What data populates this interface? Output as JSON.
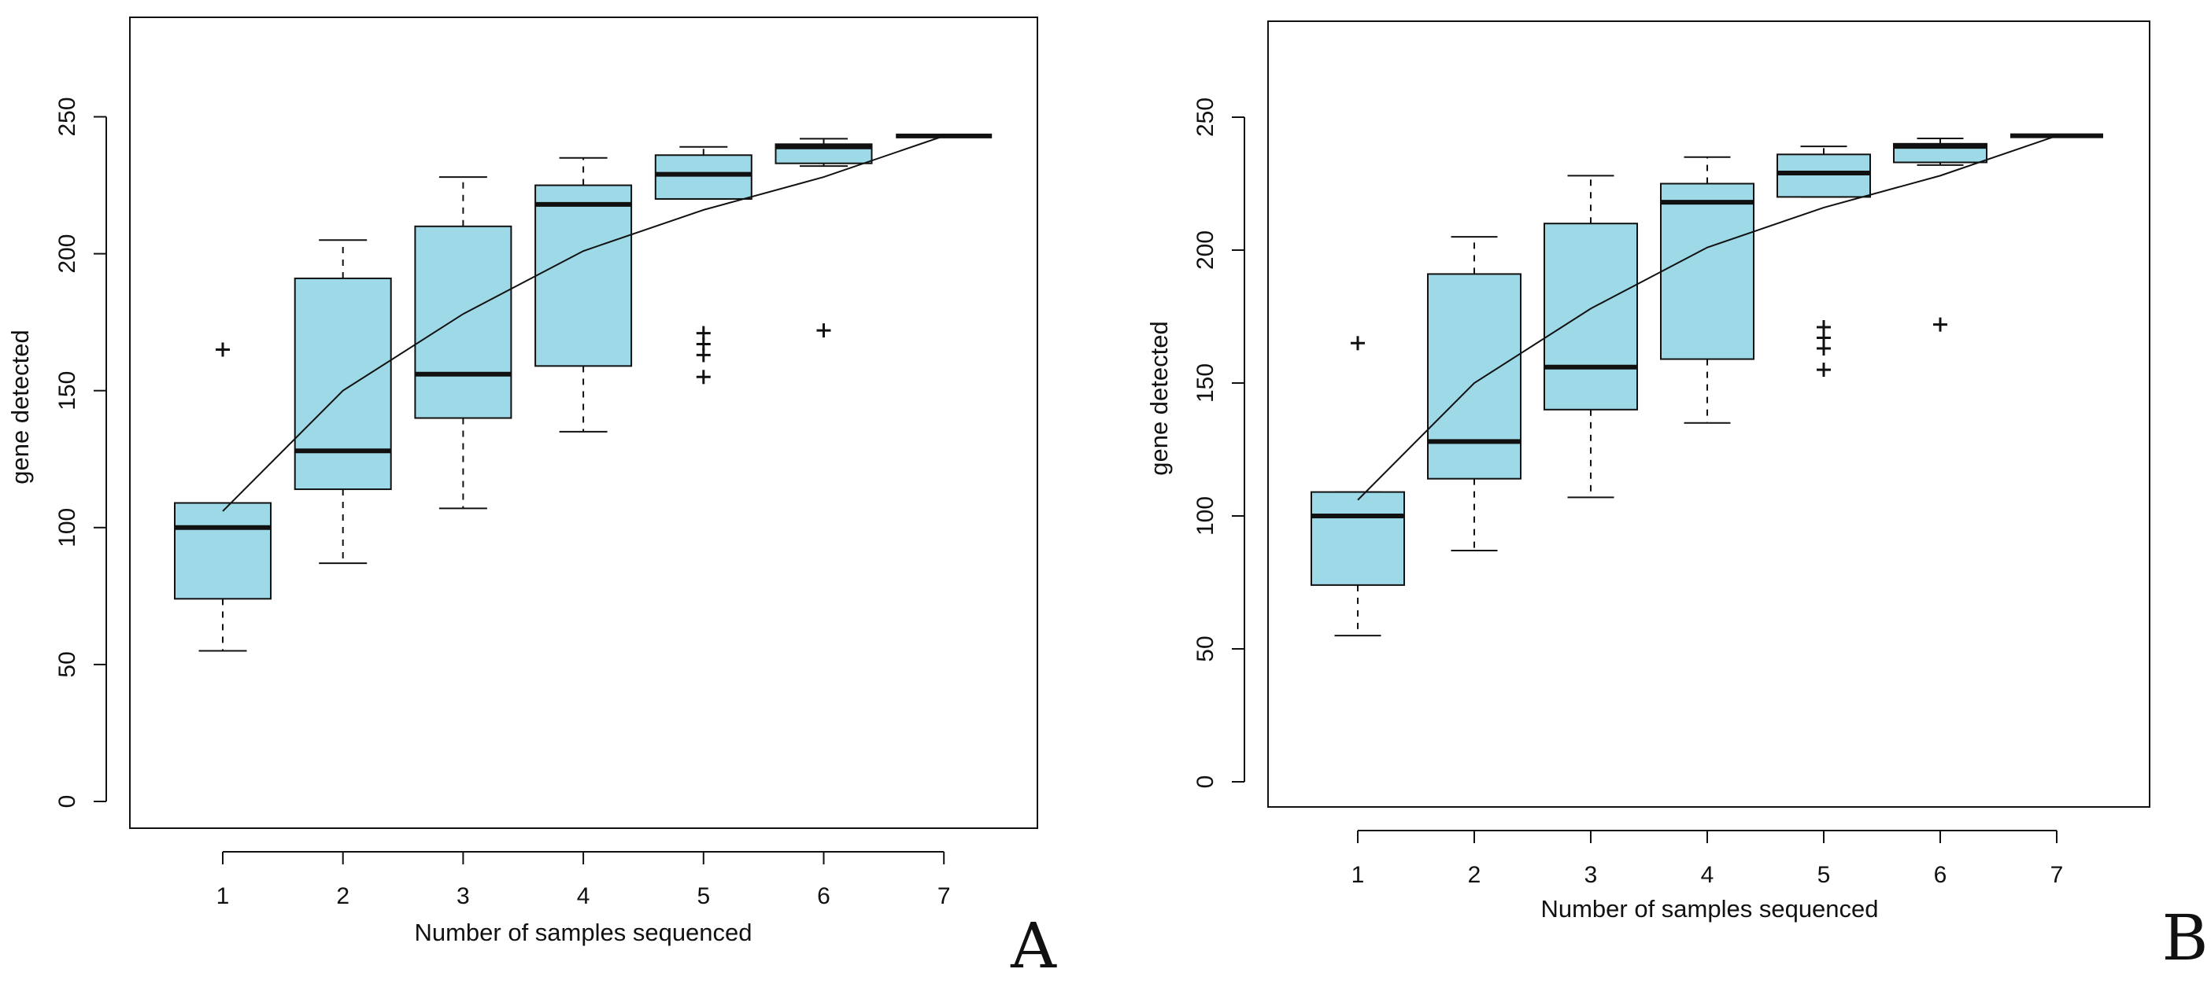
{
  "chart_data": [
    {
      "type": "box",
      "panel_label": "A",
      "xlabel": "Number of samples sequenced",
      "ylabel": "gene detected",
      "ylim": [
        -10,
        285
      ],
      "yticks": [
        0,
        50,
        100,
        150,
        200,
        250
      ],
      "categories": [
        "1",
        "2",
        "3",
        "4",
        "5",
        "6",
        "7"
      ],
      "box_color": "#9dd9e6",
      "boxes": [
        {
          "x": 1,
          "whisker_low": 55,
          "q1": 74,
          "median": 100,
          "q3": 109,
          "whisker_high": 109,
          "outliers": [
            165
          ]
        },
        {
          "x": 2,
          "whisker_low": 87,
          "q1": 114,
          "median": 128,
          "q3": 191,
          "whisker_high": 205,
          "outliers": []
        },
        {
          "x": 3,
          "whisker_low": 107,
          "q1": 140,
          "median": 156,
          "q3": 210,
          "whisker_high": 228,
          "outliers": []
        },
        {
          "x": 4,
          "whisker_low": 135,
          "q1": 159,
          "median": 218,
          "q3": 225,
          "whisker_high": 235,
          "outliers": []
        },
        {
          "x": 5,
          "whisker_low": 220,
          "q1": 220,
          "median": 229,
          "q3": 236,
          "whisker_high": 239,
          "outliers": [
            155,
            163,
            167,
            171
          ]
        },
        {
          "x": 6,
          "whisker_low": 232,
          "q1": 233,
          "median": 239,
          "q3": 240,
          "whisker_high": 242,
          "outliers": [
            172
          ]
        },
        {
          "x": 7,
          "whisker_low": 243,
          "q1": 243,
          "median": 243,
          "q3": 243,
          "whisker_high": 243,
          "outliers": []
        }
      ],
      "mean_line": {
        "x": [
          1,
          2,
          3,
          4,
          5,
          6,
          7
        ],
        "y": [
          106,
          150,
          178,
          201,
          216,
          228,
          243
        ]
      }
    },
    {
      "type": "box",
      "panel_label": "B",
      "xlabel": "Number of samples sequenced",
      "ylabel": "gene detected",
      "ylim": [
        -10,
        285
      ],
      "yticks": [
        0,
        50,
        100,
        150,
        200,
        250
      ],
      "categories": [
        "1",
        "2",
        "3",
        "4",
        "5",
        "6",
        "7"
      ],
      "box_color": "#9dd9e6",
      "boxes": [
        {
          "x": 1,
          "whisker_low": 55,
          "q1": 74,
          "median": 100,
          "q3": 109,
          "whisker_high": 109,
          "outliers": [
            165
          ]
        },
        {
          "x": 2,
          "whisker_low": 87,
          "q1": 114,
          "median": 128,
          "q3": 191,
          "whisker_high": 205,
          "outliers": []
        },
        {
          "x": 3,
          "whisker_low": 107,
          "q1": 140,
          "median": 156,
          "q3": 210,
          "whisker_high": 228,
          "outliers": []
        },
        {
          "x": 4,
          "whisker_low": 135,
          "q1": 159,
          "median": 218,
          "q3": 225,
          "whisker_high": 235,
          "outliers": []
        },
        {
          "x": 5,
          "whisker_low": 220,
          "q1": 220,
          "median": 229,
          "q3": 236,
          "whisker_high": 239,
          "outliers": [
            155,
            163,
            167,
            171
          ]
        },
        {
          "x": 6,
          "whisker_low": 232,
          "q1": 233,
          "median": 239,
          "q3": 240,
          "whisker_high": 242,
          "outliers": [
            172
          ]
        },
        {
          "x": 7,
          "whisker_low": 243,
          "q1": 243,
          "median": 243,
          "q3": 243,
          "whisker_high": 243,
          "outliers": []
        }
      ],
      "mean_line": {
        "x": [
          1,
          2,
          3,
          4,
          5,
          6,
          7
        ],
        "y": [
          106,
          150,
          178,
          201,
          216,
          228,
          243
        ]
      }
    }
  ]
}
